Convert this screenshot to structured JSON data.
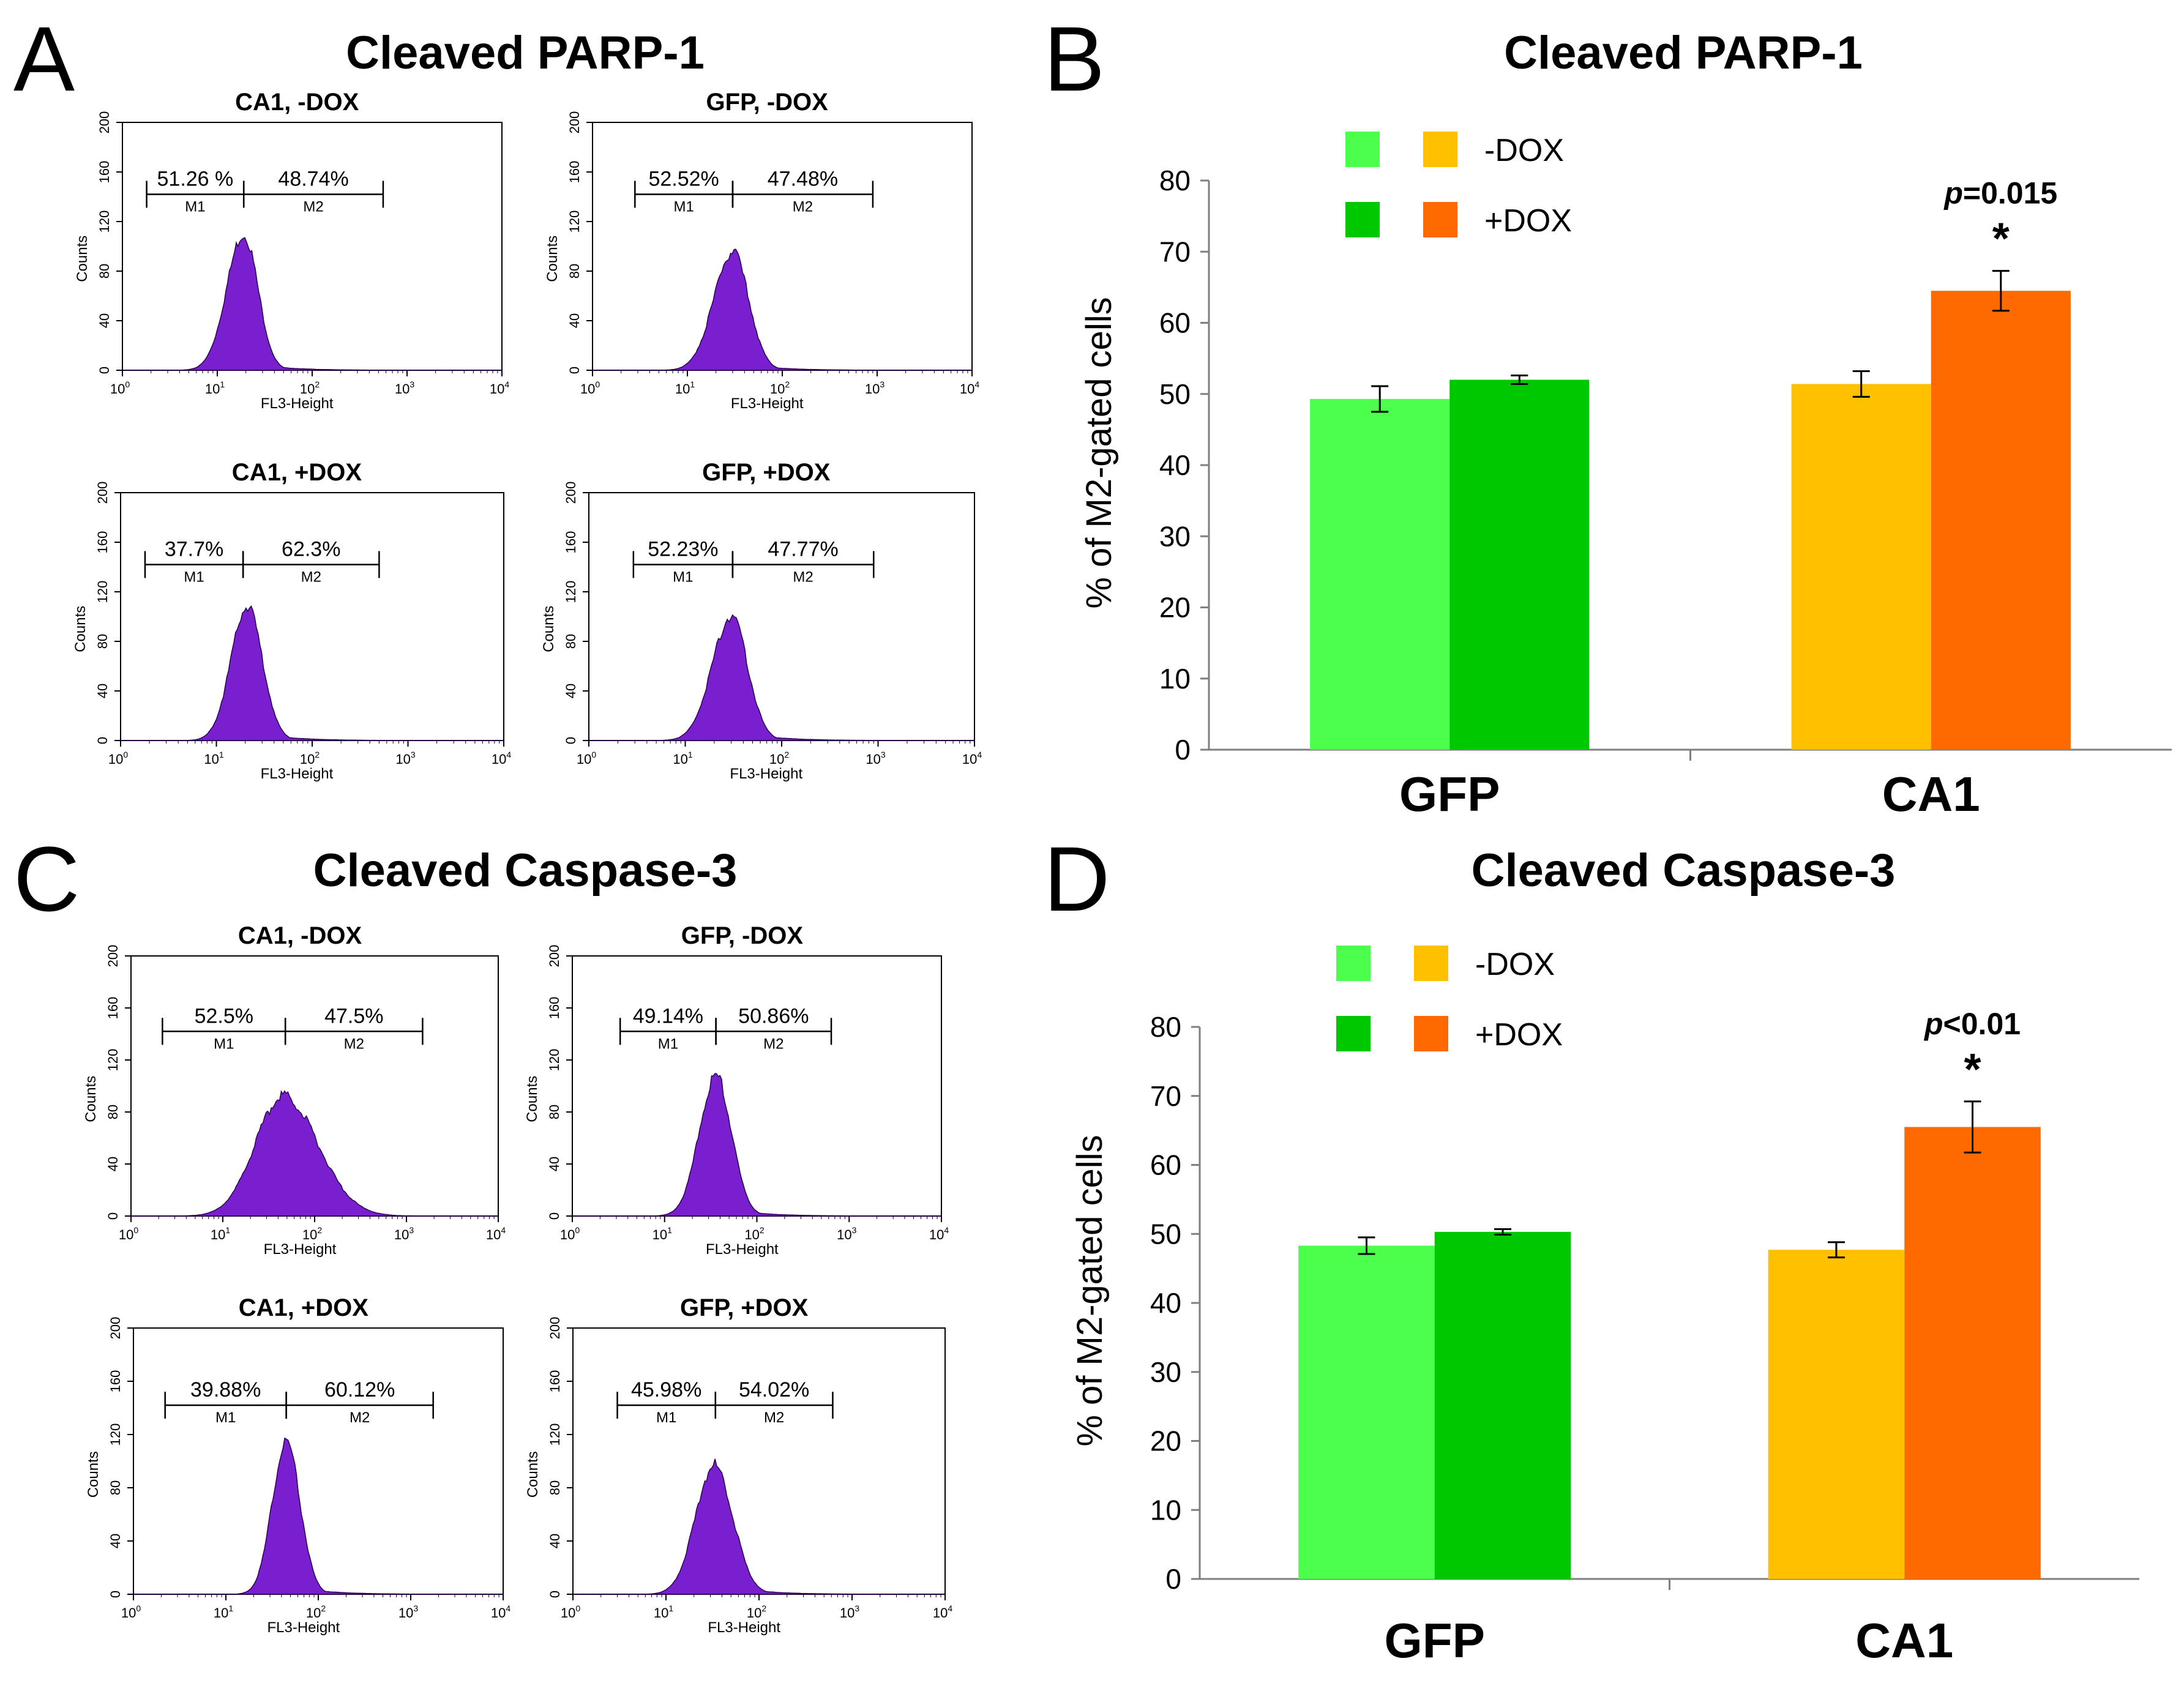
{
  "panels": {
    "A": {
      "letter": "A",
      "title": "Cleaved PARP-1"
    },
    "B": {
      "letter": "B",
      "title": "Cleaved PARP-1"
    },
    "C": {
      "letter": "C",
      "title": "Cleaved Caspase-3"
    },
    "D": {
      "letter": "D",
      "title": "Cleaved Caspase-3"
    }
  },
  "histogram_axes": {
    "y_ticks": [
      "0",
      "40",
      "80",
      "120",
      "160",
      "200"
    ],
    "y_label": "Counts",
    "x_ticks": [
      {
        "base": "10",
        "exp": "0"
      },
      {
        "base": "10",
        "exp": "1"
      },
      {
        "base": "10",
        "exp": "2"
      },
      {
        "base": "10",
        "exp": "3"
      },
      {
        "base": "10",
        "exp": "4"
      }
    ],
    "x_label": "FL3-Height"
  },
  "colors": {
    "histogram_fill": "#7a1fd0",
    "gfp_minus_dox": "#4cff4c",
    "gfp_plus_dox": "#00c800",
    "ca1_minus_dox": "#ffc000",
    "ca1_plus_dox": "#ff6a00"
  },
  "chart_data": [
    {
      "type": "histogram",
      "panel": "A",
      "title": "CA1, -DOX",
      "x_scale": "log",
      "x_range": [
        1,
        10000
      ],
      "y_range": [
        0,
        200
      ],
      "gates": [
        {
          "name": "M1",
          "label": "51.26 %",
          "range": [
            1.8,
            19
          ]
        },
        {
          "name": "M2",
          "label": "48.74%",
          "range": [
            19,
            560
          ]
        }
      ],
      "peak_x": 19,
      "peak_y": 110,
      "width_left": 0.18,
      "width_right": 0.15,
      "tail": 0.25
    },
    {
      "type": "histogram",
      "panel": "A",
      "title": "GFP, -DOX",
      "x_scale": "log",
      "x_range": [
        1,
        10000
      ],
      "y_range": [
        0,
        200
      ],
      "gates": [
        {
          "name": "M1",
          "label": "52.52%",
          "range": [
            2.8,
            30
          ]
        },
        {
          "name": "M2",
          "label": "47.48%",
          "range": [
            30,
            900
          ]
        }
      ],
      "peak_x": 30,
      "peak_y": 95,
      "width_left": 0.2,
      "width_right": 0.17,
      "tail": 0.3
    },
    {
      "type": "histogram",
      "panel": "A",
      "title": "CA1, +DOX",
      "x_scale": "log",
      "x_range": [
        1,
        10000
      ],
      "y_range": [
        0,
        200
      ],
      "gates": [
        {
          "name": "M1",
          "label": "37.7%",
          "range": [
            1.8,
            19
          ]
        },
        {
          "name": "M2",
          "label": "62.3%",
          "range": [
            19,
            500
          ]
        }
      ],
      "peak_x": 21,
      "peak_y": 108,
      "width_left": 0.17,
      "width_right": 0.16,
      "tail": 0.3
    },
    {
      "type": "histogram",
      "panel": "A",
      "title": "GFP, +DOX",
      "x_scale": "log",
      "x_range": [
        1,
        10000
      ],
      "y_range": [
        0,
        200
      ],
      "gates": [
        {
          "name": "M1",
          "label": "52.23%",
          "range": [
            2.9,
            31
          ]
        },
        {
          "name": "M2",
          "label": "47.77%",
          "range": [
            31,
            900
          ]
        }
      ],
      "peak_x": 30,
      "peak_y": 100,
      "width_left": 0.2,
      "width_right": 0.17,
      "tail": 0.35
    },
    {
      "type": "bar",
      "panel": "B",
      "title": "Cleaved PARP-1",
      "categories": [
        "GFP",
        "CA1"
      ],
      "series": [
        {
          "name": "-DOX",
          "values": [
            49.3,
            51.4
          ],
          "errors": [
            1.8,
            1.8
          ]
        },
        {
          "name": "+DOX",
          "values": [
            52.0,
            64.5
          ],
          "errors": [
            0.6,
            2.8
          ]
        }
      ],
      "legend": {
        "minus_label": "-DOX",
        "plus_label": "+DOX"
      },
      "ylabel": "% of M2-gated cells",
      "ylim": [
        0,
        80
      ],
      "yticks": [
        "0",
        "10",
        "20",
        "30",
        "40",
        "50",
        "60",
        "70",
        "80"
      ],
      "annotation": {
        "category": "CA1",
        "series": "+DOX",
        "p_letter": "p",
        "p_value": "=0.015",
        "star": "*"
      }
    },
    {
      "type": "histogram",
      "panel": "C",
      "title": "CA1, -DOX",
      "x_scale": "log",
      "x_range": [
        1,
        10000
      ],
      "y_range": [
        0,
        200
      ],
      "gates": [
        {
          "name": "M1",
          "label": "52.5%",
          "range": [
            2.2,
            48
          ]
        },
        {
          "name": "M2",
          "label": "47.5%",
          "range": [
            48,
            1500
          ]
        }
      ],
      "peak_x": 45,
      "peak_y": 92,
      "width_left": 0.3,
      "width_right": 0.38,
      "tail": 0.4
    },
    {
      "type": "histogram",
      "panel": "C",
      "title": "GFP, -DOX",
      "x_scale": "log",
      "x_range": [
        1,
        10000
      ],
      "y_range": [
        0,
        200
      ],
      "gates": [
        {
          "name": "M1",
          "label": "49.14%",
          "range": [
            3.3,
            36
          ]
        },
        {
          "name": "M2",
          "label": "50.86%",
          "range": [
            36,
            640
          ]
        }
      ],
      "peak_x": 36,
      "peak_y": 108,
      "width_left": 0.18,
      "width_right": 0.17,
      "tail": 0.3
    },
    {
      "type": "histogram",
      "panel": "C",
      "title": "CA1, +DOX",
      "x_scale": "log",
      "x_range": [
        1,
        10000
      ],
      "y_range": [
        0,
        200
      ],
      "gates": [
        {
          "name": "M1",
          "label": "39.88%",
          "range": [
            2.2,
            45
          ]
        },
        {
          "name": "M2",
          "label": "60.12%",
          "range": [
            45,
            1750
          ]
        }
      ],
      "peak_x": 45,
      "peak_y": 115,
      "width_left": 0.15,
      "width_right": 0.15,
      "tail": 0.25
    },
    {
      "type": "histogram",
      "panel": "C",
      "title": "GFP, +DOX",
      "x_scale": "log",
      "x_range": [
        1,
        10000
      ],
      "y_range": [
        0,
        200
      ],
      "gates": [
        {
          "name": "M1",
          "label": "45.98%",
          "range": [
            3.0,
            34
          ]
        },
        {
          "name": "M2",
          "label": "54.02%",
          "range": [
            34,
            620
          ]
        }
      ],
      "peak_x": 33,
      "peak_y": 97,
      "width_left": 0.2,
      "width_right": 0.2,
      "tail": 0.4
    },
    {
      "type": "bar",
      "panel": "D",
      "title": "Cleaved Caspase-3",
      "categories": [
        "GFP",
        "CA1"
      ],
      "series": [
        {
          "name": "-DOX",
          "values": [
            48.3,
            47.7
          ],
          "errors": [
            1.2,
            1.1
          ]
        },
        {
          "name": "+DOX",
          "values": [
            50.3,
            65.5
          ],
          "errors": [
            0.4,
            3.7
          ]
        }
      ],
      "legend": {
        "minus_label": "-DOX",
        "plus_label": "+DOX"
      },
      "ylabel": "% of M2-gated cells",
      "ylim": [
        0,
        80
      ],
      "yticks": [
        "0",
        "10",
        "20",
        "30",
        "40",
        "50",
        "60",
        "70",
        "80"
      ],
      "annotation": {
        "category": "CA1",
        "series": "+DOX",
        "p_letter": "p",
        "p_value": "<0.01",
        "star": "*"
      }
    }
  ]
}
